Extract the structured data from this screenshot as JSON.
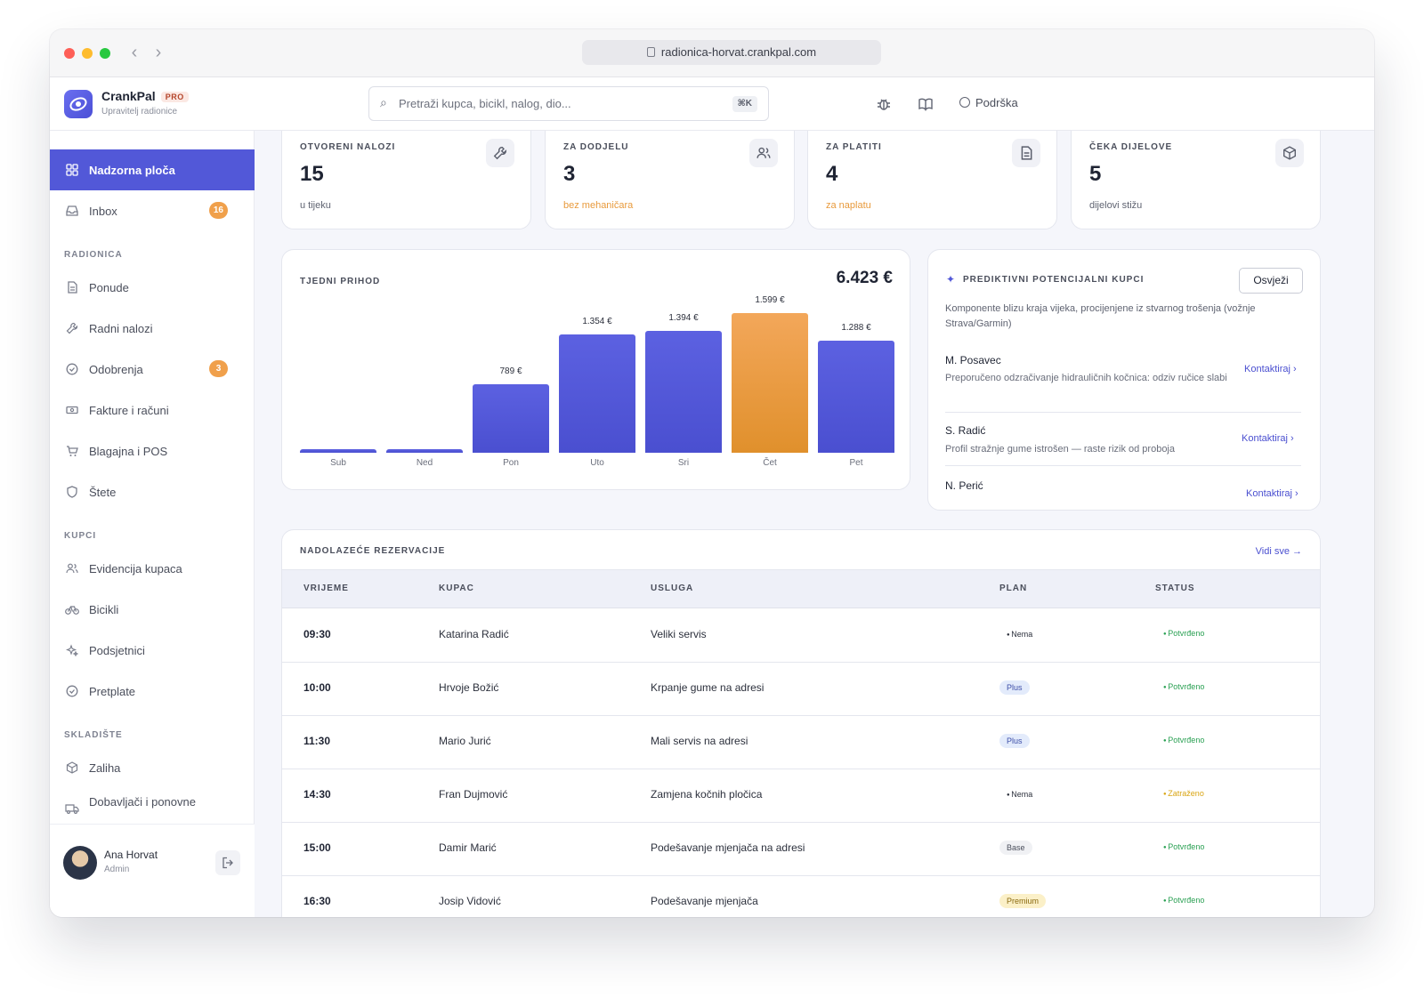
{
  "browser": {
    "url": "radionica-horvat.crankpal.com",
    "dot_colors": [
      "#fe5f57",
      "#febc2e",
      "#28c840"
    ]
  },
  "header": {
    "brand": "CrankPal",
    "plan_badge": "PRO",
    "subtitle": "Upravitelj radionice",
    "search_placeholder": "Pretraži kupca, bicikl, nalog, dio...",
    "search_shortcut": "⌘K",
    "support_label": "Podrška"
  },
  "sidebar": {
    "top_items": [
      {
        "label": "Nadzorna ploča",
        "icon": "grid-icon",
        "active": true
      },
      {
        "label": "Inbox",
        "icon": "inbox-icon",
        "badge": "16"
      }
    ],
    "sections": [
      {
        "title": "RADIONICA",
        "items": [
          {
            "label": "Ponude",
            "icon": "document-icon"
          },
          {
            "label": "Radni nalozi",
            "icon": "wrench-icon"
          },
          {
            "label": "Odobrenja",
            "icon": "check-circle-icon",
            "badge": "3"
          },
          {
            "label": "Fakture i računi",
            "icon": "banknote-icon"
          },
          {
            "label": "Blagajna i POS",
            "icon": "cart-icon"
          },
          {
            "label": "Štete",
            "icon": "shield-icon"
          }
        ]
      },
      {
        "title": "KUPCI",
        "items": [
          {
            "label": "Evidencija kupaca",
            "icon": "users-icon"
          },
          {
            "label": "Bicikli",
            "icon": "bicycle-icon"
          },
          {
            "label": "Podsjetnici",
            "icon": "sparkle-icon"
          },
          {
            "label": "Pretplate",
            "icon": "check-circle-icon"
          }
        ]
      },
      {
        "title": "SKLADIŠTE",
        "items": [
          {
            "label": "Zaliha",
            "icon": "box-icon"
          },
          {
            "label": "Dobavljači i ponovne",
            "icon": "truck-icon"
          }
        ]
      }
    ],
    "user": {
      "name": "Ana Horvat",
      "role": "Admin"
    }
  },
  "stats": [
    {
      "label": "OTVORENI NALOZI",
      "value": "15",
      "sub": "u tijeku",
      "icon": "wrench-icon",
      "warn": false
    },
    {
      "label": "ZA DODJELU",
      "value": "3",
      "sub": "bez mehaničara",
      "icon": "users-icon",
      "warn": true
    },
    {
      "label": "ZA PLATITI",
      "value": "4",
      "sub": "za naplatu",
      "icon": "document-icon",
      "warn": true
    },
    {
      "label": "ČEKA DIJELOVE",
      "value": "5",
      "sub": "dijelovi stižu",
      "icon": "box-icon",
      "warn": false
    }
  ],
  "revenue": {
    "title": "TJEDNI PRIHOD",
    "total": "6.423 €"
  },
  "chart_data": {
    "type": "bar",
    "title": "TJEDNI PRIHOD",
    "categories": [
      "Sub",
      "Ned",
      "Pon",
      "Uto",
      "Sri",
      "Čet",
      "Pet"
    ],
    "values": [
      0,
      0,
      789,
      1354,
      1394,
      1599,
      1288
    ],
    "value_labels": [
      "",
      "",
      "789 €",
      "1.354 €",
      "1.394 €",
      "1.599 €",
      "1.288 €"
    ],
    "highlight_index": 5,
    "colors": {
      "bar": "#5258d8",
      "highlight": "#eb9a40"
    },
    "ylim": [
      0,
      1599
    ],
    "grid": false
  },
  "predictive": {
    "title": "PREDIKTIVNI POTENCIJALNI KUPCI",
    "refresh_label": "Osvježi",
    "description": "Komponente blizu kraja vijeka, procijenjene iz stvarnog trošenja (vožnje Strava/Garmin)",
    "items": [
      {
        "name": "M. Posavec",
        "text": "Preporučeno odzračivanje hidrauličnih kočnica: odziv ručice slabi",
        "action": "Kontaktiraj ›"
      },
      {
        "name": "S. Radić",
        "text": "Profil stražnje gume istrošen — raste rizik od proboja",
        "action": "Kontaktiraj ›"
      },
      {
        "name": "N. Perić",
        "text": "",
        "action": "Kontaktiraj ›"
      }
    ]
  },
  "bookings": {
    "title": "NADOLAZEĆE REZERVACIJE",
    "see_all": "Vidi sve →",
    "columns": [
      "VRIJEME",
      "KUPAC",
      "USLUGA",
      "PLAN",
      "STATUS"
    ],
    "rows": [
      {
        "time": "09:30",
        "customer": "Katarina Radić",
        "service": "Veliki servis",
        "plan": "Nema",
        "plan_kind": "none",
        "status": "Potvrđeno",
        "status_kind": "ok"
      },
      {
        "time": "10:00",
        "customer": "Hrvoje Božić",
        "service": "Krpanje gume na adresi",
        "plan": "Plus",
        "plan_kind": "plus",
        "status": "Potvrđeno",
        "status_kind": "ok"
      },
      {
        "time": "11:30",
        "customer": "Mario Jurić",
        "service": "Mali servis na adresi",
        "plan": "Plus",
        "plan_kind": "plus",
        "status": "Potvrđeno",
        "status_kind": "ok"
      },
      {
        "time": "14:30",
        "customer": "Fran Dujmović",
        "service": "Zamjena kočnih pločica",
        "plan": "Nema",
        "plan_kind": "none",
        "status": "Zatraženo",
        "status_kind": "req"
      },
      {
        "time": "15:00",
        "customer": "Damir Marić",
        "service": "Podešavanje mjenjača na adresi",
        "plan": "Base",
        "plan_kind": "base",
        "status": "Potvrđeno",
        "status_kind": "ok"
      },
      {
        "time": "16:30",
        "customer": "Josip Vidović",
        "service": "Podešavanje mjenjača",
        "plan": "Premium",
        "plan_kind": "premium",
        "status": "Potvrđeno",
        "status_kind": "ok"
      }
    ]
  }
}
